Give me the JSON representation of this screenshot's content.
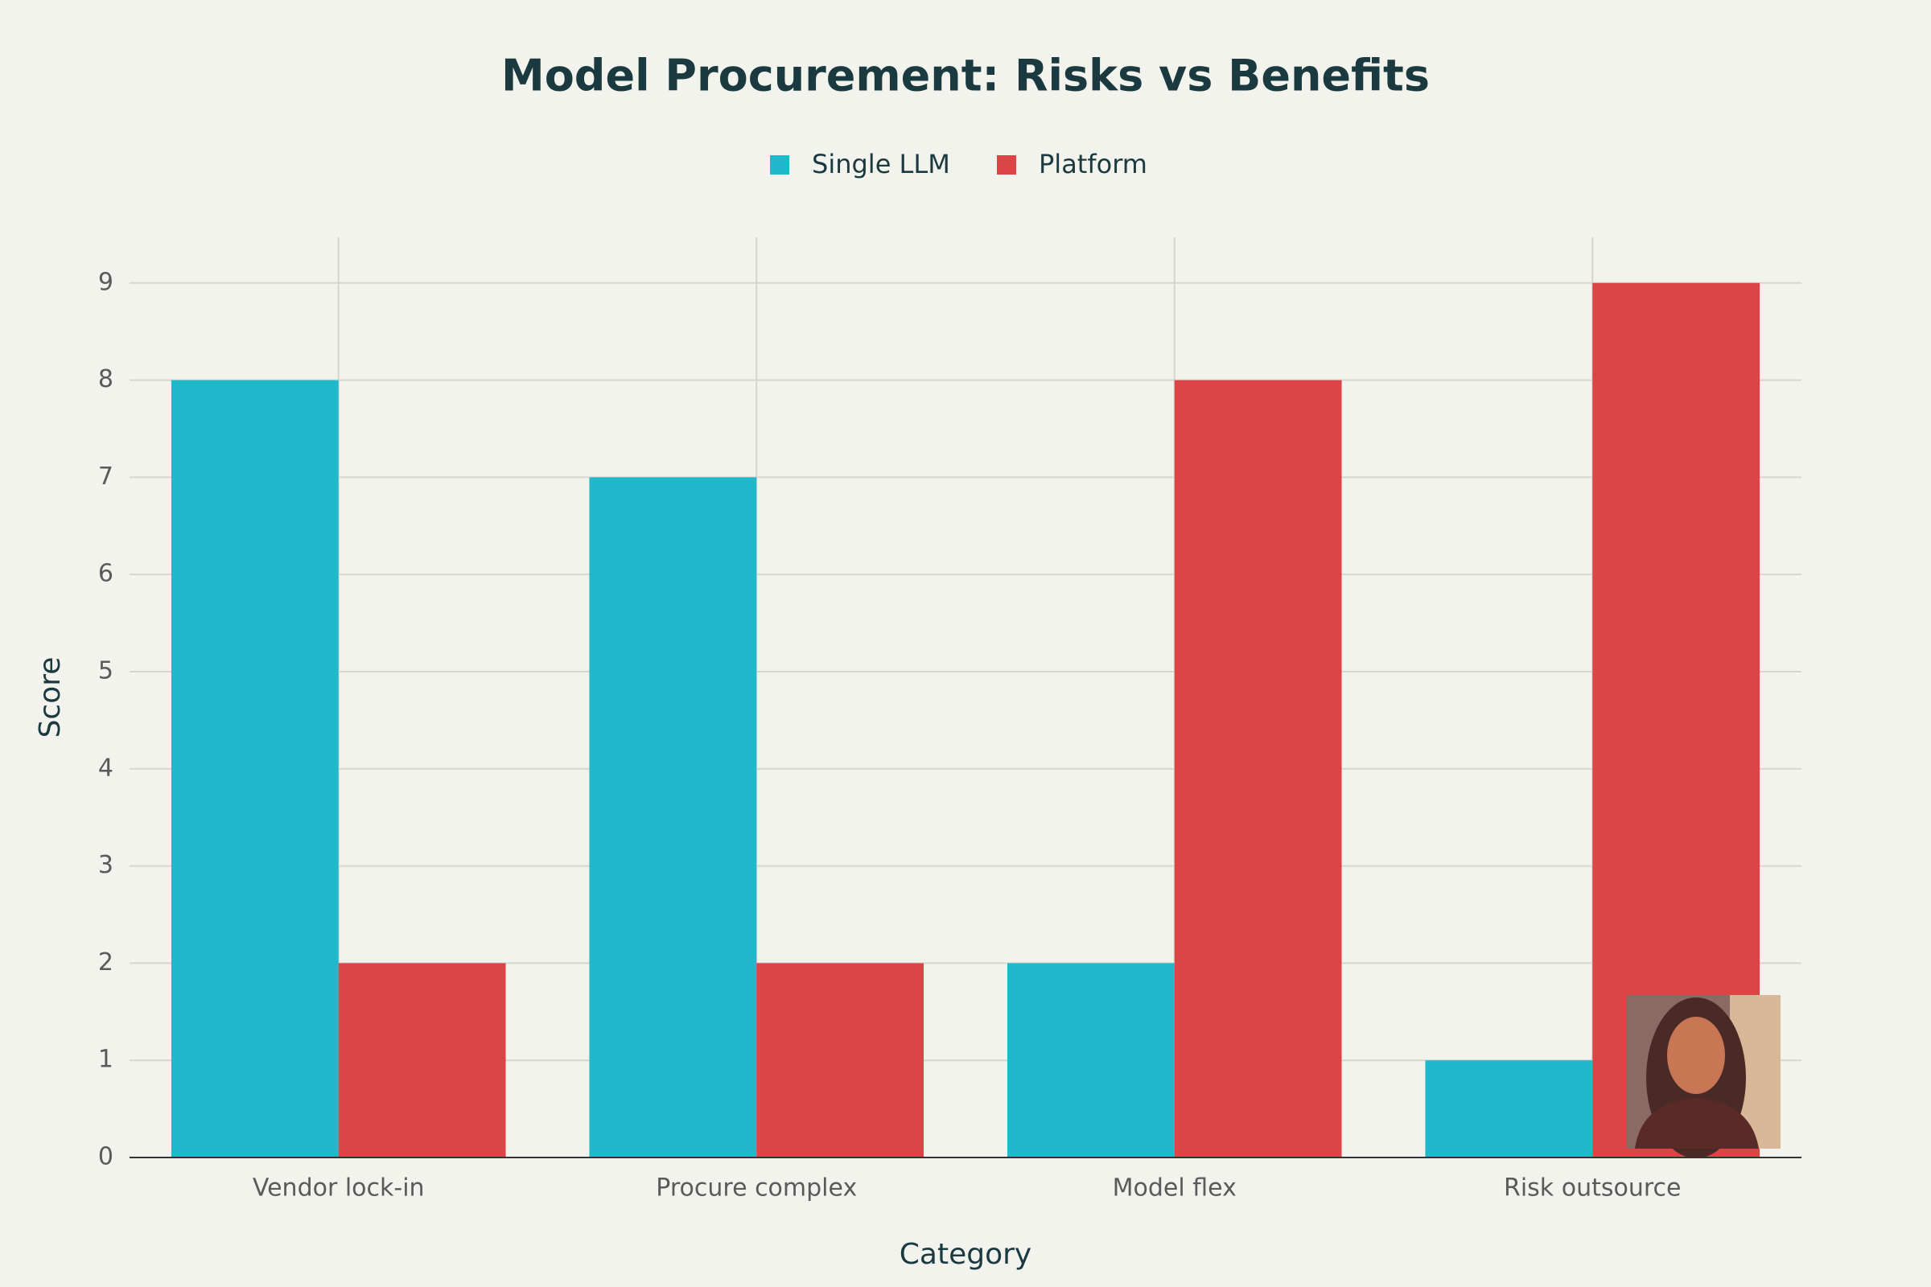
{
  "chart_data": {
    "type": "bar",
    "title": "Model Procurement: Risks vs Benefits",
    "x_label": "Category",
    "y_label": "Score",
    "categories": [
      "Vendor lock-in",
      "Procure complex",
      "Model flex",
      "Risk outsource"
    ],
    "series": [
      {
        "name": "Single LLM",
        "color": "#21b8cc",
        "values": [
          8,
          7,
          2,
          1
        ]
      },
      {
        "name": "Platform",
        "color": "#db4545",
        "values": [
          2,
          2,
          8,
          9
        ]
      }
    ],
    "ylim": [
      0,
      9.47
    ],
    "yticks": [
      0,
      1,
      2,
      3,
      4,
      5,
      6,
      7,
      8,
      9
    ],
    "grid": true,
    "legend": "top"
  }
}
